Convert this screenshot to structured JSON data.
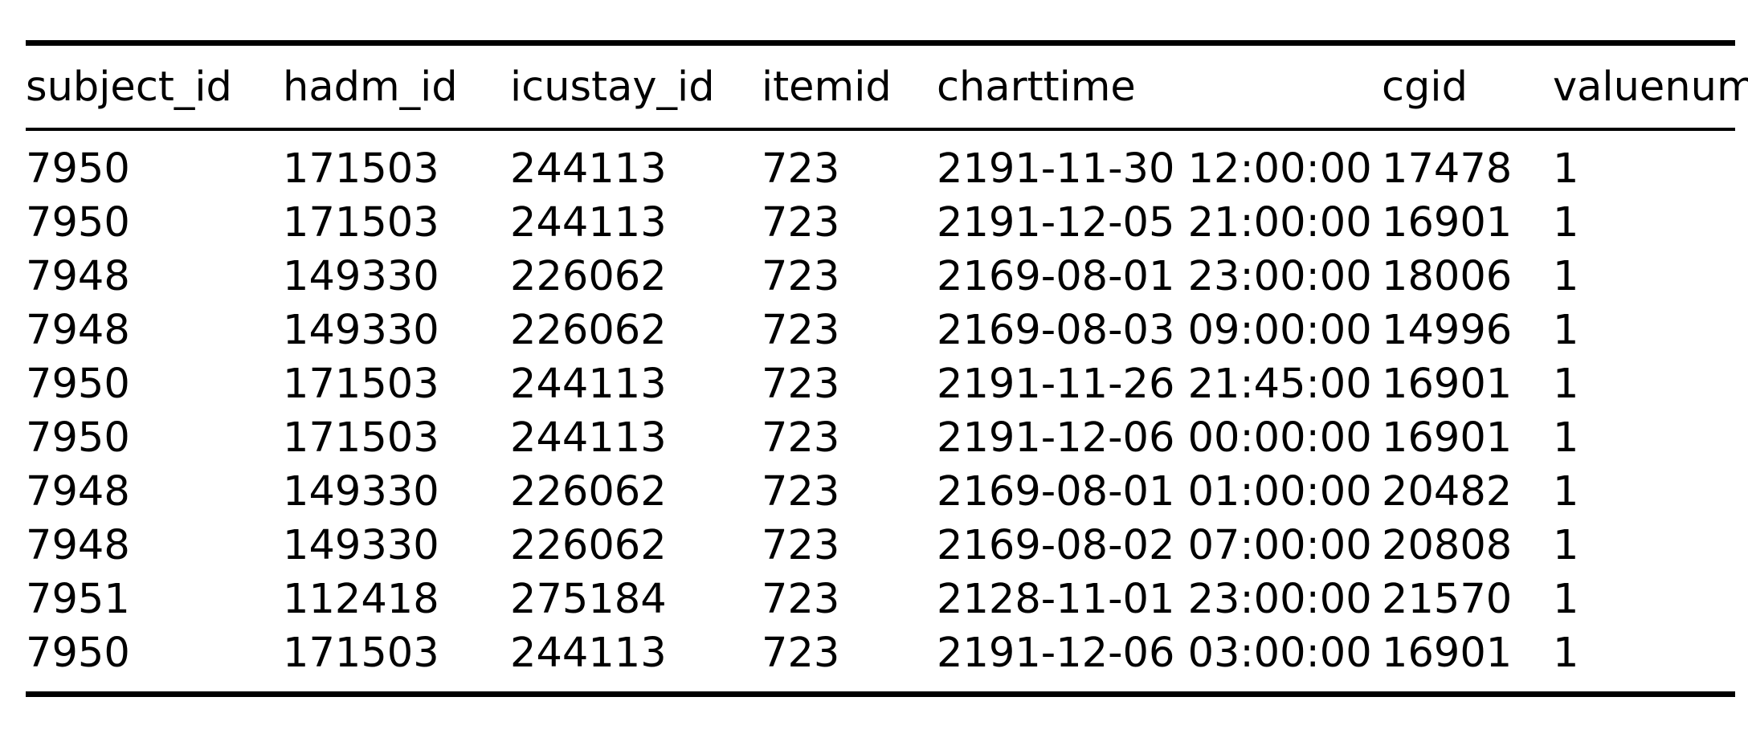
{
  "table": {
    "columns": [
      "subject_id",
      "hadm_id",
      "icustay_id",
      "itemid",
      "charttime",
      "cgid",
      "valuenum"
    ],
    "rows": [
      [
        "7950",
        "171503",
        "244113",
        "723",
        "2191-11-30 12:00:00",
        "17478",
        "1"
      ],
      [
        "7950",
        "171503",
        "244113",
        "723",
        "2191-12-05 21:00:00",
        "16901",
        "1"
      ],
      [
        "7948",
        "149330",
        "226062",
        "723",
        "2169-08-01 23:00:00",
        "18006",
        "1"
      ],
      [
        "7948",
        "149330",
        "226062",
        "723",
        "2169-08-03 09:00:00",
        "14996",
        "1"
      ],
      [
        "7950",
        "171503",
        "244113",
        "723",
        "2191-11-26 21:45:00",
        "16901",
        "1"
      ],
      [
        "7950",
        "171503",
        "244113",
        "723",
        "2191-12-06 00:00:00",
        "16901",
        "1"
      ],
      [
        "7948",
        "149330",
        "226062",
        "723",
        "2169-08-01 01:00:00",
        "20482",
        "1"
      ],
      [
        "7948",
        "149330",
        "226062",
        "723",
        "2169-08-02 07:00:00",
        "20808",
        "1"
      ],
      [
        "7951",
        "112418",
        "275184",
        "723",
        "2128-11-01 23:00:00",
        "21570",
        "1"
      ],
      [
        "7950",
        "171503",
        "244113",
        "723",
        "2191-12-06 03:00:00",
        "16901",
        "1"
      ]
    ]
  }
}
